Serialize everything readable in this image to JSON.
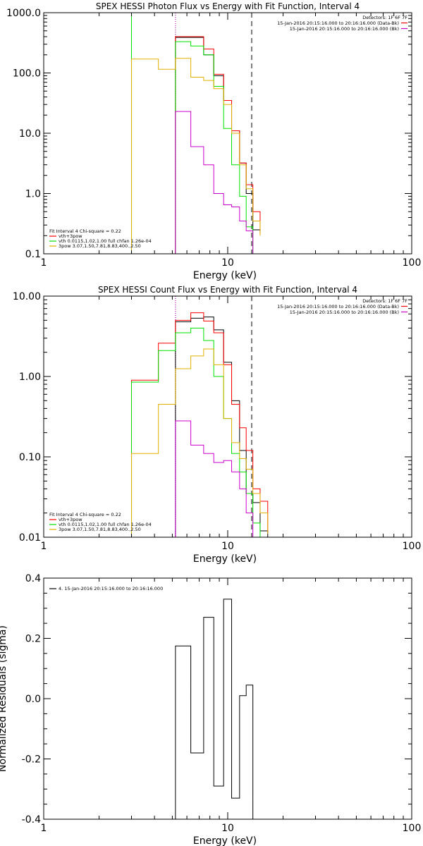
{
  "chart_data": [
    {
      "type": "line",
      "title": "SPEX HESSI Photon Flux vs Energy with Fit Function, Interval 4",
      "xlabel": "Energy (keV)",
      "ylabel": "",
      "xscale": "log",
      "yscale": "log",
      "xlim": [
        1,
        100
      ],
      "ylim": [
        0.1,
        1000
      ],
      "xticks": [
        {
          "v": 1,
          "label": "1"
        },
        {
          "v": 10,
          "label": "10"
        },
        {
          "v": 100,
          "label": "100"
        }
      ],
      "yticks": [
        {
          "v": 0.1,
          "label": "0.1"
        },
        {
          "v": 1,
          "label": "1.0"
        },
        {
          "v": 10,
          "label": "10.0"
        },
        {
          "v": 100,
          "label": "100.0"
        },
        {
          "v": 1000,
          "label": "1000.0"
        }
      ],
      "vlines": [
        {
          "x": 3.0,
          "color": "#00e000",
          "dash": ""
        },
        {
          "x": 5.2,
          "color": "#00c000",
          "dash": "1,2"
        },
        {
          "x": 5.2,
          "color": "#cc00cc",
          "dash": "1,2"
        },
        {
          "x": 13.5,
          "color": "#000000",
          "dash": "7,5"
        }
      ],
      "info": [
        "Detectors: 1F 6F 7F",
        "15-Jan-2016 20:15:16.000 to 20:16:16.000 (Data-Bk)",
        "15-Jan-2016 20:15:16.000 to 20:16:16.000 (Bk)"
      ],
      "info_colors": [
        "#ff0000",
        "#cc00cc"
      ],
      "legend": [
        "Fit Interval 4   Chi-square = 0.22",
        "vth+3pow",
        "vth 0.0115,1.02,1.00  full chfan 1.26e-04",
        "3pow 3.07,1.50,7.81,8.83,400.,2.50"
      ],
      "legend_colors": [
        "#ff0000",
        "#00e000",
        "#e0b000"
      ],
      "series": [
        {
          "color": "#000000",
          "edges": [
            5.2,
            6.3,
            7.4,
            8.4,
            9.5,
            10.5,
            11.6,
            12.6,
            13.7,
            15.0
          ],
          "values": [
            390,
            390,
            200,
            90,
            35,
            11,
            3.2,
            1.0,
            0.25,
            0.22
          ]
        },
        {
          "color": "#ff0000",
          "edges": [
            5.2,
            6.3,
            7.4,
            8.4,
            9.5,
            10.5,
            11.6,
            12.6,
            13.7,
            15.0
          ],
          "values": [
            400,
            400,
            250,
            95,
            35,
            11,
            3.2,
            1.4,
            0.5,
            0.22
          ]
        },
        {
          "color": "#00e000",
          "edges": [
            5.2,
            6.3,
            7.4,
            8.4,
            9.5,
            10.5,
            11.6,
            12.6,
            13.7
          ],
          "values": [
            330,
            280,
            200,
            60,
            12,
            3.0,
            0.9,
            0.28
          ]
        },
        {
          "color": "#e0b000",
          "edges": [
            3.0,
            4.2,
            5.2,
            6.3,
            7.4,
            8.4,
            9.5,
            10.5,
            11.6,
            12.6,
            13.7,
            15.0
          ],
          "values": [
            170,
            115,
            175,
            85,
            75,
            55,
            30,
            10,
            3.0,
            1.2,
            0.35,
            0.2
          ]
        },
        {
          "color": "#cc00cc",
          "edges": [
            5.2,
            6.3,
            7.4,
            8.4,
            9.5,
            10.5,
            11.6,
            12.6,
            13.7
          ],
          "values": [
            23,
            6.0,
            3.0,
            1.0,
            0.65,
            0.6,
            0.35,
            0.24
          ]
        }
      ]
    },
    {
      "type": "line",
      "title": "SPEX HESSI Count Flux vs Energy with Fit Function, Interval 4",
      "xlabel": "Energy (keV)",
      "ylabel": "",
      "xscale": "log",
      "yscale": "log",
      "xlim": [
        1,
        100
      ],
      "ylim": [
        0.01,
        10
      ],
      "xticks": [
        {
          "v": 1,
          "label": "1"
        },
        {
          "v": 10,
          "label": "10"
        },
        {
          "v": 100,
          "label": "100"
        }
      ],
      "yticks": [
        {
          "v": 0.01,
          "label": "0.01"
        },
        {
          "v": 0.1,
          "label": "0.10"
        },
        {
          "v": 1,
          "label": "1.00"
        },
        {
          "v": 10,
          "label": "10.00"
        }
      ],
      "vlines": [
        {
          "x": 5.2,
          "color": "#000000",
          "dash": "1,2"
        },
        {
          "x": 5.2,
          "color": "#cc00cc",
          "dash": "1,2"
        },
        {
          "x": 13.5,
          "color": "#000000",
          "dash": "7,5"
        }
      ],
      "info": [
        "Detectors: 1F 6F 7F",
        "15-Jan-2016 20:15:16.000 to 20:16:16.000 (Data-Bk)",
        "15-Jan-2016 20:15:16.000 to 20:16:16.000 (Bk)"
      ],
      "info_colors": [
        "#ff0000",
        "#cc00cc"
      ],
      "legend": [
        "Fit Interval 4   Chi-square = 0.22",
        "vth+3pow",
        "vth 0.0115,1.02,1.00  full chfan 1.26e-04",
        "3pow 3.07,1.50,7.81,8.83,400.,2.50"
      ],
      "legend_colors": [
        "#ff0000",
        "#00e000",
        "#e0b000"
      ],
      "series": [
        {
          "color": "#000000",
          "edges": [
            5.2,
            6.3,
            7.4,
            8.4,
            9.5,
            10.5,
            11.6,
            12.6,
            13.7,
            15.0,
            16.5
          ],
          "values": [
            4.8,
            5.3,
            5.5,
            3.8,
            1.5,
            0.5,
            0.12,
            0.035,
            0.027,
            0.012
          ]
        },
        {
          "color": "#ff0000",
          "edges": [
            3.0,
            4.2,
            5.2,
            6.3,
            7.4,
            8.4,
            9.5,
            10.5,
            11.6,
            12.6,
            13.7,
            15.0,
            16.5
          ],
          "values": [
            0.9,
            2.6,
            5.0,
            6.2,
            4.9,
            3.5,
            1.4,
            0.45,
            0.23,
            0.12,
            0.04,
            0.028,
            0.012
          ]
        },
        {
          "color": "#00e000",
          "edges": [
            3.0,
            4.2,
            5.2,
            6.3,
            7.4,
            8.4,
            9.5,
            10.5,
            11.6,
            12.6,
            13.7,
            15.0
          ],
          "values": [
            0.85,
            2.1,
            3.5,
            4.0,
            2.8,
            1.0,
            0.3,
            0.11,
            0.065,
            0.035,
            0.015
          ]
        },
        {
          "color": "#e0b000",
          "edges": [
            3.0,
            4.2,
            5.2,
            6.3,
            7.4,
            8.4,
            9.5,
            10.5,
            11.6,
            12.6,
            13.7,
            15.0,
            16.5
          ],
          "values": [
            0.11,
            0.45,
            1.25,
            1.8,
            2.2,
            1.4,
            0.3,
            0.15,
            0.095,
            0.07,
            0.035,
            0.02,
            0.011
          ]
        },
        {
          "color": "#cc00cc",
          "edges": [
            5.2,
            6.3,
            7.4,
            8.4,
            9.5,
            10.5,
            11.6,
            12.6,
            13.7
          ],
          "values": [
            0.28,
            0.14,
            0.11,
            0.085,
            0.09,
            0.065,
            0.04,
            0.02
          ]
        }
      ]
    },
    {
      "type": "line",
      "title": "",
      "xlabel": "Energy (keV)",
      "ylabel": "Normalized Residuals (sigma)",
      "xscale": "log",
      "yscale": "linear",
      "xlim": [
        1,
        100
      ],
      "ylim": [
        -0.4,
        0.4
      ],
      "xticks": [
        {
          "v": 1,
          "label": "1"
        },
        {
          "v": 10,
          "label": "10"
        },
        {
          "v": 100,
          "label": "100"
        }
      ],
      "yticks": [
        {
          "v": -0.4,
          "label": "-0.4"
        },
        {
          "v": -0.2,
          "label": "-0.2"
        },
        {
          "v": 0,
          "label": "0.0"
        },
        {
          "v": 0.2,
          "label": "0.2"
        },
        {
          "v": 0.4,
          "label": "0.4"
        }
      ],
      "vlines": [],
      "legend": [
        "4. 15-Jan-2016 20:15:16.000 to 20:16:16.000"
      ],
      "legend_colors": [
        "#000000"
      ],
      "series": [
        {
          "color": "#000000",
          "edges": [
            5.2,
            6.3,
            7.4,
            8.4,
            9.5,
            10.5,
            11.6,
            12.6,
            13.7
          ],
          "values": [
            0.175,
            -0.18,
            0.27,
            -0.29,
            0.33,
            -0.33,
            0.01,
            0.045
          ],
          "close_to_floor": true
        }
      ]
    }
  ]
}
